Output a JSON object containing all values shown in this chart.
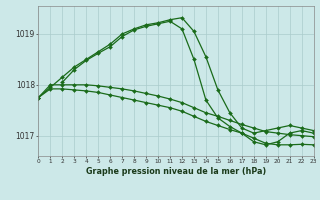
{
  "background_color": "#cce8e8",
  "grid_color": "#aacccc",
  "line_color": "#1a6b1a",
  "xlabel": "Graphe pression niveau de la mer (hPa)",
  "xlim": [
    0,
    23
  ],
  "ylim": [
    1016.6,
    1019.55
  ],
  "yticks": [
    1017,
    1018,
    1019
  ],
  "xticks": [
    0,
    1,
    2,
    3,
    4,
    5,
    6,
    7,
    8,
    9,
    10,
    11,
    12,
    13,
    14,
    15,
    16,
    17,
    18,
    19,
    20,
    21,
    22,
    23
  ],
  "series": [
    {
      "x": [
        0,
        1,
        2,
        3,
        4,
        5,
        6,
        7,
        8,
        9,
        10,
        11,
        12,
        13,
        14,
        15,
        16,
        17,
        18,
        19,
        20,
        21,
        22,
        23
      ],
      "y": [
        1017.75,
        1017.95,
        1018.15,
        1018.35,
        1018.5,
        1018.65,
        1018.8,
        1019.0,
        1019.1,
        1019.18,
        1019.22,
        1019.28,
        1019.32,
        1019.05,
        1018.55,
        1017.9,
        1017.45,
        1017.15,
        1017.05,
        1017.1,
        1017.15,
        1017.2,
        1017.15,
        1017.1
      ]
    },
    {
      "x": [
        2,
        3,
        4,
        5,
        6,
        7,
        8,
        9,
        10,
        11,
        12,
        13,
        14,
        15,
        16,
        17,
        18,
        19,
        20,
        21,
        22,
        23
      ],
      "y": [
        1018.05,
        1018.3,
        1018.48,
        1018.62,
        1018.75,
        1018.95,
        1019.08,
        1019.15,
        1019.2,
        1019.25,
        1019.1,
        1018.5,
        1017.7,
        1017.35,
        1017.18,
        1017.05,
        1016.88,
        1016.82,
        1016.88,
        1017.05,
        1017.1,
        1017.05
      ]
    },
    {
      "x": [
        0,
        1,
        2,
        3,
        4,
        5,
        6,
        7,
        8,
        9,
        10,
        11,
        12,
        13,
        14,
        15,
        16,
        17,
        18,
        19,
        20,
        21,
        22,
        23
      ],
      "y": [
        1017.75,
        1018.0,
        1018.0,
        1018.0,
        1018.0,
        1017.98,
        1017.95,
        1017.92,
        1017.88,
        1017.83,
        1017.78,
        1017.72,
        1017.65,
        1017.55,
        1017.45,
        1017.38,
        1017.3,
        1017.22,
        1017.15,
        1017.08,
        1017.05,
        1017.02,
        1017.0,
        1016.98
      ]
    },
    {
      "x": [
        0,
        1,
        2,
        3,
        4,
        5,
        6,
        7,
        8,
        9,
        10,
        11,
        12,
        13,
        14,
        15,
        16,
        17,
        18,
        19,
        20,
        21,
        22,
        23
      ],
      "y": [
        1017.75,
        1017.92,
        1017.92,
        1017.9,
        1017.88,
        1017.85,
        1017.8,
        1017.75,
        1017.7,
        1017.65,
        1017.6,
        1017.55,
        1017.48,
        1017.38,
        1017.28,
        1017.2,
        1017.12,
        1017.05,
        1016.95,
        1016.85,
        1016.82,
        1016.82,
        1016.83,
        1016.82
      ]
    }
  ]
}
